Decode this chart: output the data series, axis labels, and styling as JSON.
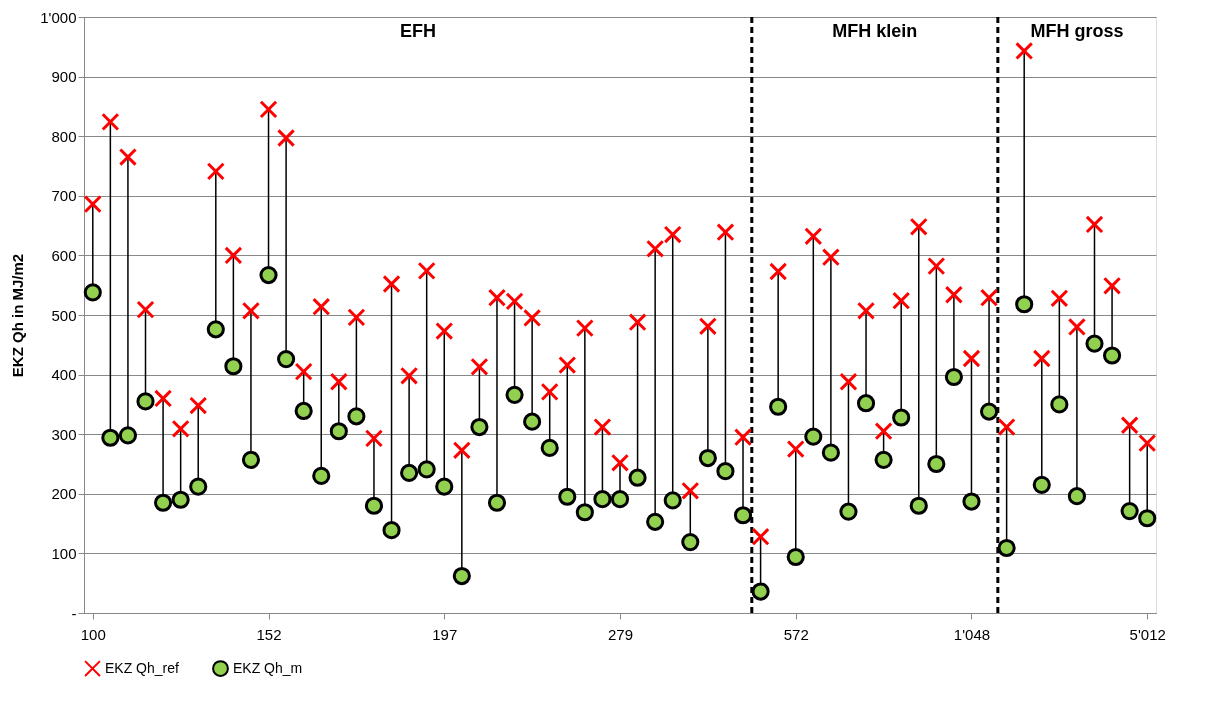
{
  "chart_data": {
    "type": "scatter",
    "ylabel": "EKZ Qh in MJ/m2",
    "categories": [
      "100",
      null,
      null,
      null,
      null,
      null,
      null,
      null,
      null,
      null,
      "152",
      null,
      null,
      null,
      null,
      null,
      null,
      null,
      null,
      null,
      "197",
      null,
      null,
      null,
      null,
      null,
      null,
      null,
      null,
      null,
      "279",
      null,
      null,
      null,
      null,
      null,
      null,
      null,
      null,
      null,
      "572",
      null,
      null,
      null,
      null,
      null,
      null,
      null,
      null,
      null,
      "1'048",
      null,
      null,
      null,
      null,
      null,
      null,
      null,
      null,
      null,
      "5'012"
    ],
    "series": [
      {
        "name": "EKZ Qh_ref",
        "color": "#ff0000",
        "marker": "cross",
        "values": [
          686,
          824,
          765,
          509,
          360,
          309,
          348,
          741,
          600,
          507,
          845,
          797,
          405,
          514,
          388,
          496,
          293,
          552,
          398,
          574,
          473,
          273,
          413,
          529,
          523,
          495,
          371,
          416,
          478,
          312,
          252,
          488,
          611,
          635,
          205,
          481,
          639,
          295,
          128,
          573,
          275,
          632,
          597,
          388,
          507,
          305,
          524,
          648,
          582,
          534,
          427,
          529,
          312,
          943,
          427,
          528,
          480,
          652,
          549,
          315,
          285
        ]
      },
      {
        "name": "EKZ Qh_m",
        "color": "#92d050",
        "marker": "circle",
        "values": [
          538,
          294,
          298,
          355,
          185,
          190,
          212,
          476,
          414,
          257,
          567,
          426,
          339,
          230,
          305,
          330,
          180,
          139,
          235,
          241,
          212,
          62,
          312,
          185,
          366,
          321,
          277,
          195,
          169,
          191,
          191,
          227,
          153,
          189,
          119,
          260,
          238,
          164,
          36,
          346,
          94,
          296,
          269,
          170,
          352,
          257,
          328,
          180,
          250,
          396,
          187,
          338,
          109,
          518,
          215,
          350,
          196,
          452,
          432,
          171,
          159
        ]
      }
    ],
    "ylim": [
      0,
      1000
    ],
    "yticks": [
      {
        "value": 0,
        "label": "-"
      },
      100,
      200,
      300,
      400,
      500,
      600,
      700,
      800,
      900,
      {
        "value": 1000,
        "label": "1'000"
      }
    ],
    "grid": "y",
    "legend": "bottom",
    "annotations": [
      "EFH",
      "MFH klein",
      "MFH gross"
    ]
  }
}
